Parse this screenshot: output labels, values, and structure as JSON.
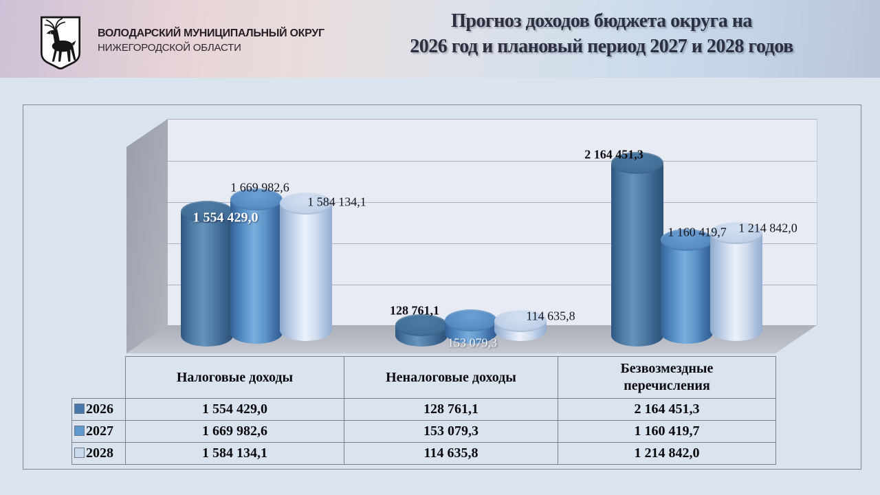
{
  "slide": {
    "background": "#dbe3ee",
    "header_gradient": [
      "#ccc1d6",
      "#e9dcda",
      "#d0deeb",
      "#b9c3d9"
    ]
  },
  "header": {
    "logo_icon": "nizhny-novgorod-deer-shield-emblem",
    "org_line1": "ВОЛОДАРСКИЙ МУНИЦИПАЛЬНЫЙ ОКРУГ",
    "org_line2": "НИЖЕГОРОДСКОЙ ОБЛАСТИ",
    "title_line1": "Прогноз доходов бюджета округа на",
    "title_line2": "2026 год и плановый период 2027 и 2028 годов"
  },
  "chart_data": {
    "type": "bar",
    "subtype": "3d-cylinder-clustered",
    "categories": [
      "Налоговые доходы",
      "Неналоговые доходы",
      "Безвозмездные перечисления"
    ],
    "series": [
      {
        "name": "2026",
        "color": "#4878aa",
        "values": [
          1554429.0,
          128761.1,
          2164451.3
        ],
        "labels": [
          "1 554 429,0",
          "128 761,1",
          "2 164 451,3"
        ]
      },
      {
        "name": "2027",
        "color": "#5f98cc",
        "values": [
          1669982.6,
          153079.3,
          1160419.7
        ],
        "labels": [
          "1 669 982,6",
          "153 079,3",
          "1 160 419,7"
        ]
      },
      {
        "name": "2028",
        "color": "#c9d9ee",
        "values": [
          1584134.1,
          114635.8,
          1214842.0
        ],
        "labels": [
          "1 584 134,1",
          "114 635,8",
          "1 214 842,0"
        ]
      }
    ],
    "value_axis": {
      "min": 0,
      "max_estimated": 2500000,
      "gridline_interval_estimated": 500000,
      "tick_labels_visible": false
    },
    "grid": true,
    "legend_position": "table-left-column",
    "wall_color": "#e9ebf4",
    "floor_color": "#b9bcc4"
  }
}
